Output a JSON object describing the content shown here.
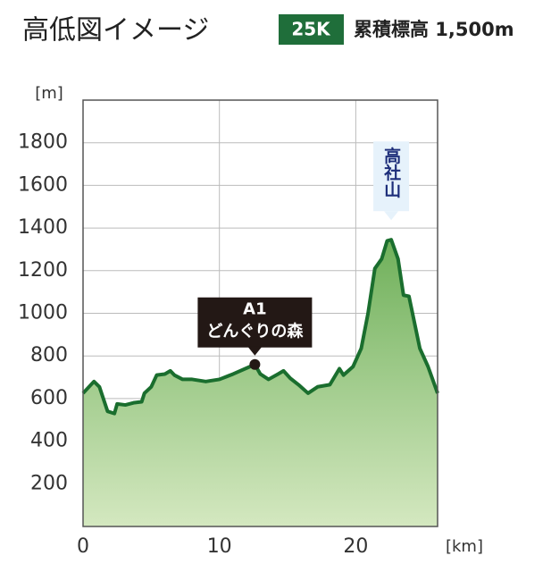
{
  "chart_data": {
    "type": "area",
    "title": "高低図イメージ",
    "badge": "25K",
    "summary": "累積標高 1,500m",
    "y_unit": "[m]",
    "x_unit": "[km]",
    "x": [
      0,
      0.8,
      1.2,
      1.8,
      2.3,
      2.5,
      3.1,
      3.7,
      4.3,
      4.5,
      5.0,
      5.4,
      6.0,
      6.4,
      6.7,
      7.3,
      8.0,
      9.0,
      10.0,
      11.0,
      12.6,
      13.0,
      13.6,
      14.3,
      14.7,
      15.2,
      15.8,
      16.5,
      17.2,
      18.1,
      18.8,
      19.1,
      19.8,
      20.4,
      20.9,
      21.4,
      21.9,
      22.3,
      22.6,
      23.1,
      23.5,
      23.9,
      24.7,
      25.3,
      26.0
    ],
    "values": [
      625,
      680,
      655,
      540,
      530,
      575,
      570,
      580,
      585,
      625,
      655,
      710,
      715,
      730,
      710,
      690,
      690,
      680,
      690,
      715,
      760,
      715,
      690,
      715,
      730,
      695,
      665,
      625,
      655,
      665,
      740,
      710,
      750,
      835,
      1000,
      1210,
      1255,
      1340,
      1345,
      1255,
      1085,
      1080,
      835,
      750,
      625
    ],
    "color": "#1a6e2e",
    "fill_top": "#6fb05a",
    "fill_bottom": "#d4e8c0",
    "xlim": [
      0,
      26
    ],
    "ylim": [
      0,
      2000
    ],
    "xticks": [
      0,
      10,
      20
    ],
    "yticks": [
      200,
      400,
      600,
      800,
      1000,
      1200,
      1400,
      1600,
      1800
    ],
    "grid": true,
    "annotations": [
      {
        "x": 12.6,
        "y": 760,
        "lines": [
          "A1",
          "どんぐりの森"
        ]
      },
      {
        "x": 22.6,
        "y": 1345,
        "lines": [
          "高社山"
        ]
      }
    ]
  }
}
